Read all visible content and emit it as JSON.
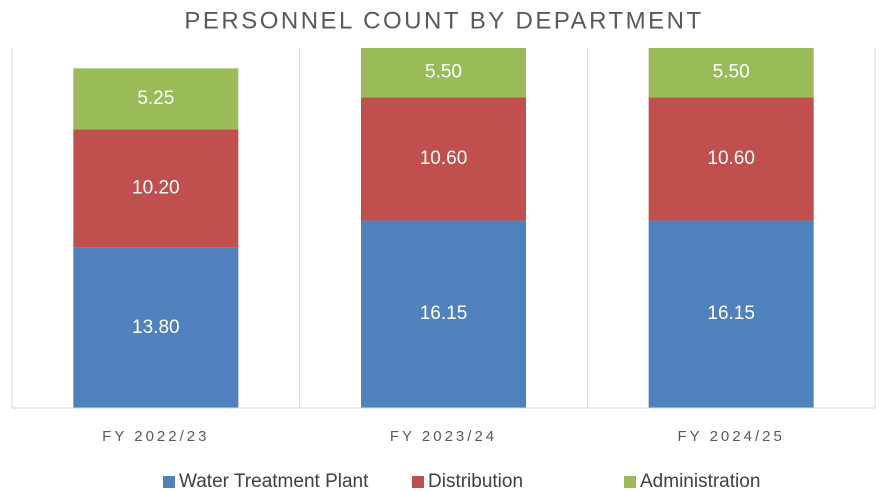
{
  "chart_data": {
    "type": "stacked_bar",
    "title": "PERSONNEL COUNT BY DEPARTMENT",
    "categories": [
      "FY 2022/23",
      "FY 2023/24",
      "FY 2024/25"
    ],
    "series": [
      {
        "name": "Water Treatment Plant",
        "color": "#4f81bd",
        "values": [
          13.8,
          16.15,
          16.15
        ],
        "value_labels": [
          "13.80",
          "16.15",
          "16.15"
        ]
      },
      {
        "name": "Distribution",
        "color": "#c0504d",
        "values": [
          10.2,
          10.6,
          10.6
        ],
        "value_labels": [
          "10.20",
          "10.60",
          "10.60"
        ]
      },
      {
        "name": "Administration",
        "color": "#9bbb59",
        "values": [
          5.25,
          5.5,
          5.5
        ],
        "value_labels": [
          "5.25",
          "5.50",
          "5.50"
        ]
      }
    ],
    "ylim": [
      0,
      31
    ],
    "legend": "bottom"
  }
}
